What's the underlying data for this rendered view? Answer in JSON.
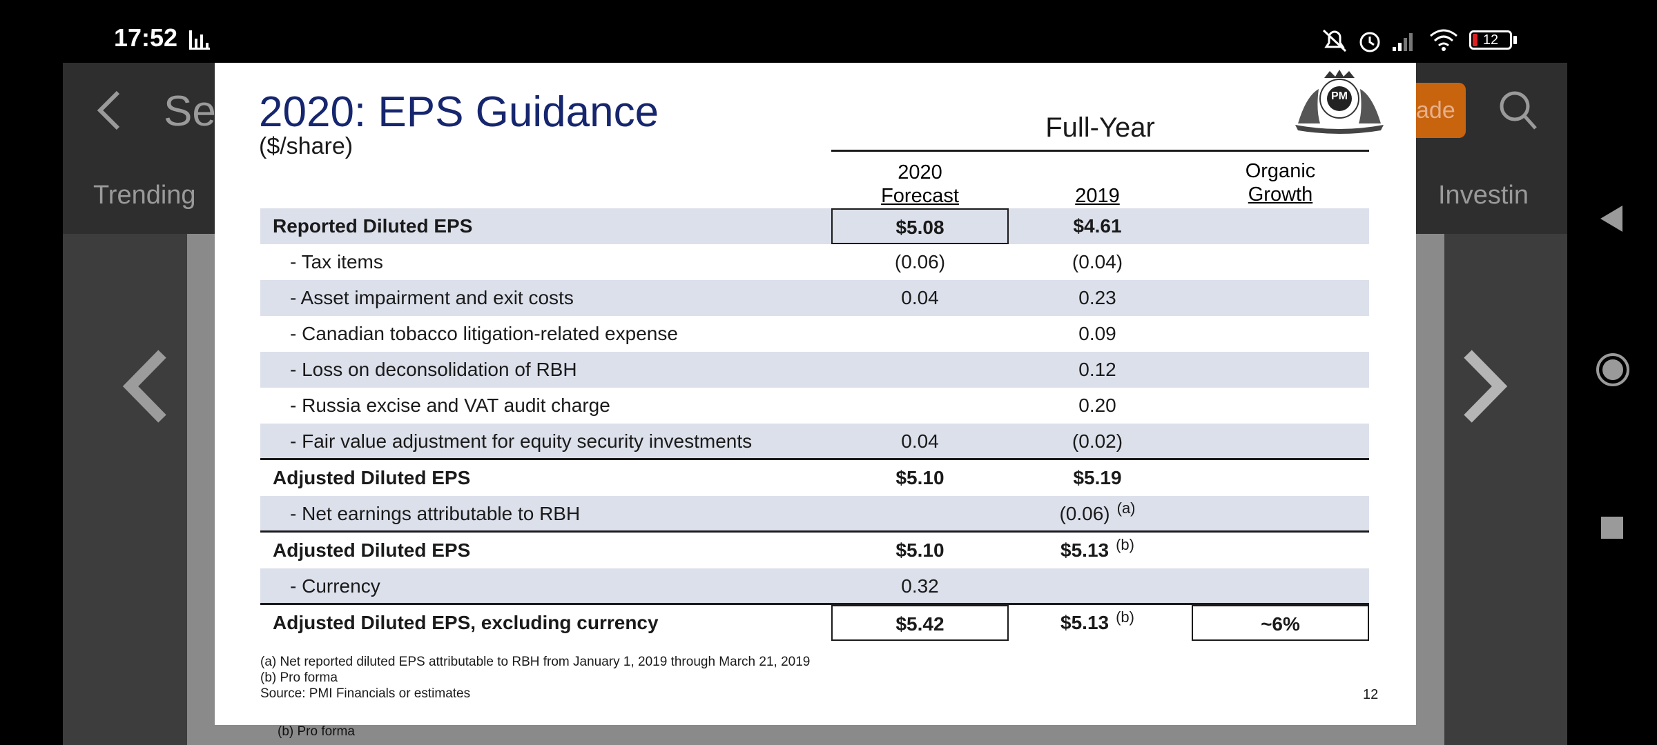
{
  "status_bar": {
    "time": "17:52",
    "battery": "12",
    "icons": [
      "stats-icon",
      "mute-icon",
      "alarm-icon",
      "signal-icon",
      "wifi-icon",
      "battery-icon"
    ]
  },
  "background_app": {
    "search_text": "Sea",
    "tab_trending": "Trending",
    "tab_investing": "Investin",
    "upgrade_button": "ade",
    "footnote_peek": "(b) Pro forma",
    "accent_color": "#c8630e"
  },
  "slide": {
    "title": "2020: EPS Guidance",
    "subtitle": "($/share)",
    "group_header": "Full-Year",
    "columns": [
      {
        "line1": "2020",
        "line2": "Forecast"
      },
      {
        "line1": "",
        "line2": "2019"
      },
      {
        "line1": "Organic",
        "line2": "Growth"
      }
    ],
    "rows": [
      {
        "label": "Reported Diluted EPS",
        "forecast": "$5.08",
        "y2019": "$4.61",
        "note2019": "",
        "growth": ""
      },
      {
        "label": "- Tax items",
        "forecast": "(0.06)",
        "y2019": "(0.04)",
        "note2019": "",
        "growth": ""
      },
      {
        "label": "- Asset impairment and exit costs",
        "forecast": "0.04",
        "y2019": "0.23",
        "note2019": "",
        "growth": ""
      },
      {
        "label": "- Canadian tobacco litigation-related expense",
        "forecast": "",
        "y2019": "0.09",
        "note2019": "",
        "growth": ""
      },
      {
        "label": "- Loss on deconsolidation of RBH",
        "forecast": "",
        "y2019": "0.12",
        "note2019": "",
        "growth": ""
      },
      {
        "label": "- Russia excise and VAT audit charge",
        "forecast": "",
        "y2019": "0.20",
        "note2019": "",
        "growth": ""
      },
      {
        "label": "- Fair value adjustment for equity security investments",
        "forecast": "0.04",
        "y2019": "(0.02)",
        "note2019": "",
        "growth": ""
      },
      {
        "label": "Adjusted Diluted EPS",
        "forecast": "$5.10",
        "y2019": "$5.19",
        "note2019": "",
        "growth": ""
      },
      {
        "label": "- Net earnings attributable to RBH",
        "forecast": "",
        "y2019": "(0.06)",
        "note2019": "(a)",
        "growth": ""
      },
      {
        "label": "Adjusted Diluted EPS",
        "forecast": "$5.10",
        "y2019": "$5.13",
        "note2019": "(b)",
        "growth": ""
      },
      {
        "label": "- Currency",
        "forecast": "0.32",
        "y2019": "",
        "note2019": "",
        "growth": ""
      },
      {
        "label": "Adjusted Diluted EPS, excluding currency",
        "forecast": "$5.42",
        "y2019": "$5.13",
        "note2019": "(b)",
        "growth": "~6%"
      }
    ],
    "footnotes": [
      "(a)  Net reported diluted EPS attributable to RBH from January 1, 2019 through March 21, 2019",
      "(b)  Pro forma",
      "Source: PMI Financials or estimates"
    ],
    "page_number": "12",
    "logo_text": "PM",
    "header_color": "#16266e",
    "shade_color": "#dce0eb"
  }
}
